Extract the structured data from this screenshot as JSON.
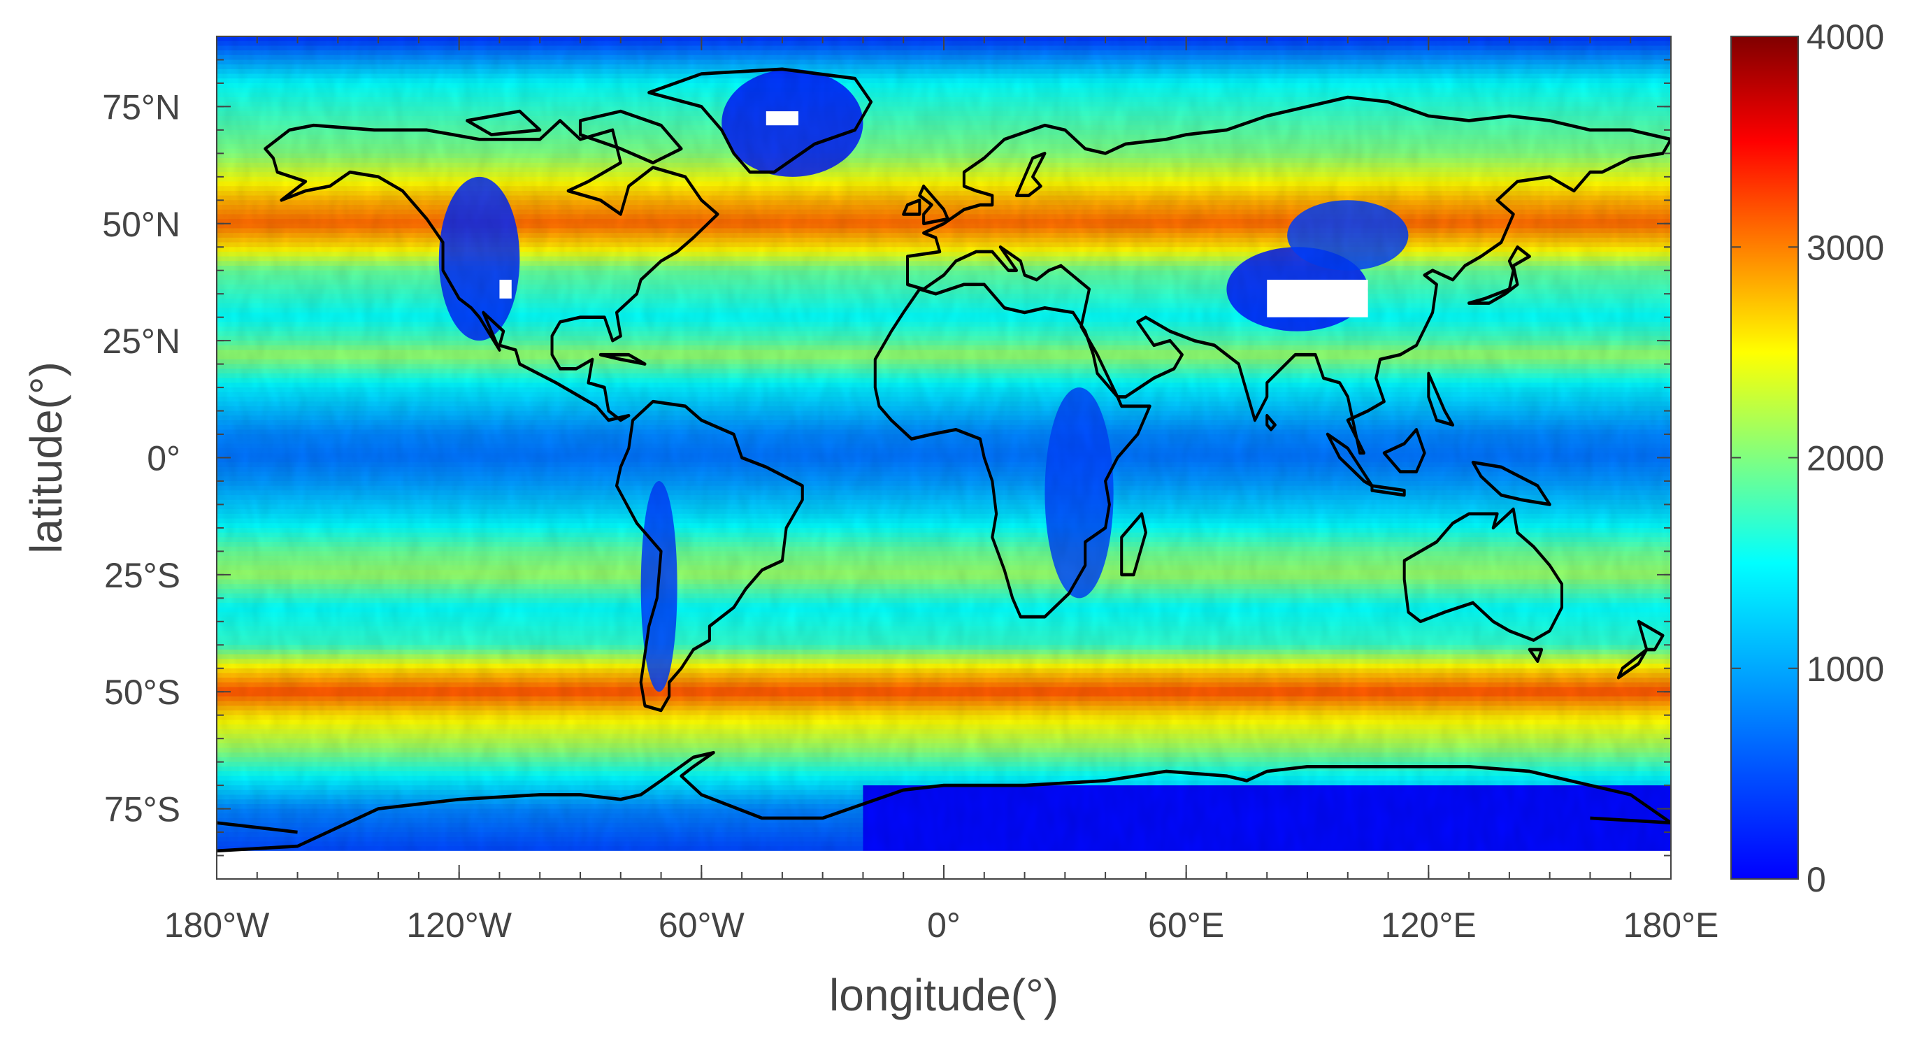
{
  "chart_data": {
    "type": "heatmap",
    "title": "",
    "xlabel": "longitude(°)",
    "ylabel": "latitude(°)",
    "xlim": [
      -180,
      180
    ],
    "ylim": [
      -90,
      90
    ],
    "x_ticks": [
      {
        "value": -180,
        "label": "180°W"
      },
      {
        "value": -120,
        "label": "120°W"
      },
      {
        "value": -60,
        "label": "60°W"
      },
      {
        "value": 0,
        "label": "0°"
      },
      {
        "value": 60,
        "label": "60°E"
      },
      {
        "value": 120,
        "label": "120°E"
      },
      {
        "value": 180,
        "label": "180°E"
      }
    ],
    "y_ticks": [
      {
        "value": 75,
        "label": "75°N"
      },
      {
        "value": 50,
        "label": "50°N"
      },
      {
        "value": 25,
        "label": "25°N"
      },
      {
        "value": 0,
        "label": "0°"
      },
      {
        "value": -25,
        "label": "25°S"
      },
      {
        "value": -50,
        "label": "50°S"
      },
      {
        "value": -75,
        "label": "75°S"
      }
    ],
    "colorbar": {
      "range": [
        0,
        4000
      ],
      "ticks": [
        {
          "value": 0,
          "label": "0"
        },
        {
          "value": 1000,
          "label": "1000"
        },
        {
          "value": 2000,
          "label": "2000"
        },
        {
          "value": 3000,
          "label": "3000"
        },
        {
          "value": 4000,
          "label": "4000"
        }
      ],
      "colormap": "jet"
    },
    "grid": false,
    "latitude_bands": [
      {
        "lat": 90,
        "value": 300
      },
      {
        "lat": 80,
        "value": 1500
      },
      {
        "lat": 65,
        "value": 2000
      },
      {
        "lat": 60,
        "value": 2400
      },
      {
        "lat": 55,
        "value": 2800
      },
      {
        "lat": 50,
        "value": 3100
      },
      {
        "lat": 45,
        "value": 2600
      },
      {
        "lat": 40,
        "value": 1900
      },
      {
        "lat": 30,
        "value": 1500
      },
      {
        "lat": 25,
        "value": 1800
      },
      {
        "lat": 22,
        "value": 2100
      },
      {
        "lat": 15,
        "value": 1400
      },
      {
        "lat": 5,
        "value": 800
      },
      {
        "lat": 0,
        "value": 700
      },
      {
        "lat": -5,
        "value": 900
      },
      {
        "lat": -12,
        "value": 1300
      },
      {
        "lat": -20,
        "value": 1900
      },
      {
        "lat": -25,
        "value": 2100
      },
      {
        "lat": -32,
        "value": 1500
      },
      {
        "lat": -40,
        "value": 1700
      },
      {
        "lat": -45,
        "value": 2600
      },
      {
        "lat": -50,
        "value": 3200
      },
      {
        "lat": -55,
        "value": 2600
      },
      {
        "lat": -62,
        "value": 2100
      },
      {
        "lat": -68,
        "value": 1500
      },
      {
        "lat": -75,
        "value": 800
      },
      {
        "lat": -90,
        "value": 200
      }
    ],
    "low_value_regions": [
      {
        "name": "Greenland",
        "lat_range": [
          60,
          83
        ],
        "lon_range": [
          -55,
          -20
        ],
        "value": 150
      },
      {
        "name": "Rocky Mountains",
        "lat_range": [
          25,
          60
        ],
        "lon_range": [
          -125,
          -105
        ],
        "value": 250
      },
      {
        "name": "Andes",
        "lat_range": [
          -50,
          -5
        ],
        "lon_range": [
          -75,
          -66
        ],
        "value": 400
      },
      {
        "name": "East Africa",
        "lat_range": [
          -30,
          15
        ],
        "lon_range": [
          25,
          42
        ],
        "value": 450
      },
      {
        "name": "Tibetan Plateau",
        "lat_range": [
          27,
          45
        ],
        "lon_range": [
          70,
          105
        ],
        "value": 150
      },
      {
        "name": "Central Asia",
        "lat_range": [
          40,
          55
        ],
        "lon_range": [
          85,
          115
        ],
        "value": 400
      },
      {
        "name": "Antarctica",
        "lat_range": [
          -90,
          -70
        ],
        "lon_range": [
          -20,
          180
        ],
        "value": 50
      }
    ],
    "missing_data_regions": [
      {
        "lat_range": [
          71,
          74
        ],
        "lon_range": [
          -44,
          -36
        ]
      },
      {
        "lat_range": [
          34,
          38
        ],
        "lon_range": [
          -110,
          -107
        ]
      },
      {
        "lat_range": [
          30,
          38
        ],
        "lon_range": [
          80,
          105
        ]
      },
      {
        "lat_range": [
          -90,
          -84
        ],
        "lon_range": [
          -180,
          180
        ]
      }
    ]
  },
  "colors": {
    "frame": "#444444",
    "coastline": "#000000",
    "missing": "#ffffff"
  }
}
